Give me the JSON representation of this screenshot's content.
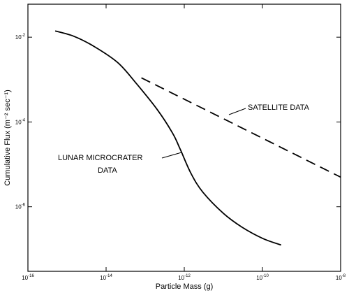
{
  "chart_data": {
    "type": "line",
    "title": "",
    "xlabel": "Particle Mass (g)",
    "ylabel": "Cumulative Flux (m⁻² sec⁻¹)",
    "x_scale": "log",
    "y_scale": "log",
    "xlim": [
      1e-16,
      1e-08
    ],
    "ylim": [
      3e-08,
      0.06
    ],
    "x_ticks": [
      {
        "value": 1e-16,
        "base": "10",
        "exp": "-16"
      },
      {
        "value": 1e-14,
        "base": "10",
        "exp": "-14"
      },
      {
        "value": 1e-12,
        "base": "10",
        "exp": "-12"
      },
      {
        "value": 1e-10,
        "base": "10",
        "exp": "-10"
      },
      {
        "value": 1e-08,
        "base": "10",
        "exp": "-8"
      }
    ],
    "y_ticks": [
      {
        "value": 0.01,
        "base": "10",
        "exp": "-2"
      },
      {
        "value": 0.0001,
        "base": "10",
        "exp": "-4"
      },
      {
        "value": 1e-06,
        "base": "10",
        "exp": "-6"
      }
    ],
    "grid": false,
    "series": [
      {
        "name": "LUNAR MICROCRATER DATA",
        "style": "solid",
        "x": [
          5e-16,
          1.5e-15,
          5e-15,
          2e-14,
          6e-14,
          2e-13,
          5e-13,
          8e-13,
          1.5e-12,
          3e-12,
          1e-11,
          3e-11,
          1e-10,
          3e-10
        ],
        "y": [
          0.014,
          0.0105,
          0.006,
          0.0025,
          0.0008,
          0.0002,
          5.5e-05,
          2.2e-05,
          6e-06,
          2.2e-06,
          7e-07,
          3.3e-07,
          1.8e-07,
          1.25e-07
        ]
      },
      {
        "name": "SATELLITE DATA",
        "style": "dashed",
        "x": [
          8e-14,
          1e-08
        ],
        "y": [
          0.0011,
          5e-06
        ]
      }
    ],
    "annotations": [
      {
        "text": "SATELLITE DATA",
        "series": "SATELLITE DATA"
      },
      {
        "text": "LUNAR MICROCRATER",
        "series": "LUNAR MICROCRATER DATA"
      },
      {
        "text": "DATA",
        "series": "LUNAR MICROCRATER DATA"
      }
    ]
  }
}
